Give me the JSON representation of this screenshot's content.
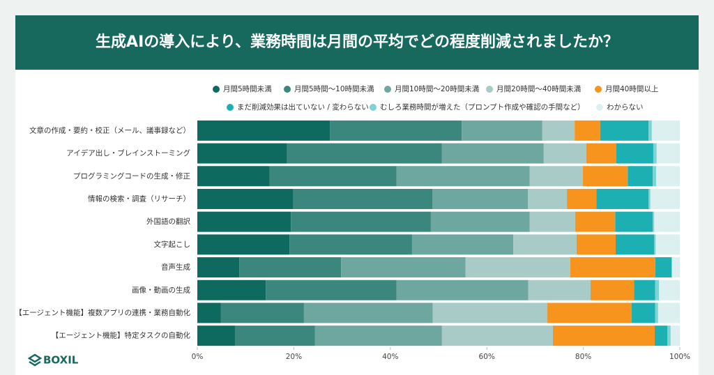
{
  "brand": "BOXIL",
  "chart_data": {
    "type": "stacked-bar-horizontal",
    "title": "生成AIの導入により、業務時間は月間の平均でどの程度削減されましたか？",
    "categories": [
      "文章の作成・要約・校正（メール、議事録など）",
      "アイデア出し・ブレインストーミング",
      "プログラミングコードの生成・修正",
      "情報の検索・調査（リサーチ）",
      "外国語の翻訳",
      "文字起こし",
      "音声生成",
      "画像・動画の生成",
      "【エージェント機能】複数アプリの連携・業務自動化",
      "【エージェント機能】特定タスクの自動化"
    ],
    "series": [
      {
        "name": "月間5時間未満",
        "color": "#0e6a5f",
        "values": [
          27.5,
          18.6,
          15.0,
          19.9,
          19.4,
          19.1,
          8.7,
          14.2,
          4.9,
          7.8
        ]
      },
      {
        "name": "月間5時間～10時間未満",
        "color": "#3b877d",
        "values": [
          27.3,
          32.1,
          26.3,
          28.8,
          29.0,
          25.4,
          21.1,
          27.1,
          17.2,
          16.6
        ]
      },
      {
        "name": "月間10時間～20時間未満",
        "color": "#6da7a0",
        "values": [
          16.7,
          21.1,
          27.6,
          19.8,
          20.5,
          21.0,
          25.8,
          27.3,
          26.7,
          26.3
        ]
      },
      {
        "name": "月間20時間～40時間未満",
        "color": "#a9cbc7",
        "values": [
          6.7,
          8.8,
          11.0,
          8.1,
          9.4,
          13.1,
          21.7,
          12.9,
          23.7,
          23.0
        ]
      },
      {
        "name": "月間40時間以上",
        "color": "#f7941d",
        "values": [
          5.3,
          6.2,
          9.3,
          6.1,
          8.3,
          8.1,
          17.6,
          9.0,
          17.5,
          21.1
        ]
      },
      {
        "name": "まだ削減効果は出ていない / 変わらない",
        "color": "#1db0b2",
        "values": [
          10.0,
          7.7,
          5.2,
          10.8,
          7.8,
          8.0,
          3.4,
          4.4,
          4.9,
          2.6
        ]
      },
      {
        "name": "むしろ業務時間が増えた（プロンプト作成や確認の手間など）",
        "color": "#7fd3d5",
        "values": [
          0.7,
          0.7,
          0.7,
          0.4,
          0.3,
          0.3,
          0.1,
          0.8,
          0.6,
          0.7
        ]
      },
      {
        "name": "わからない",
        "color": "#dcf0f0",
        "values": [
          5.8,
          4.8,
          4.9,
          6.1,
          5.3,
          5.0,
          1.6,
          4.3,
          4.5,
          1.9
        ]
      }
    ],
    "xlim": [
      0,
      100
    ],
    "xticks": [
      {
        "value": 0,
        "label": "0%"
      },
      {
        "value": 20,
        "label": "20%"
      },
      {
        "value": 40,
        "label": "40%"
      },
      {
        "value": 60,
        "label": "60%"
      },
      {
        "value": 80,
        "label": "80%"
      },
      {
        "value": 100,
        "label": "100%"
      }
    ]
  }
}
